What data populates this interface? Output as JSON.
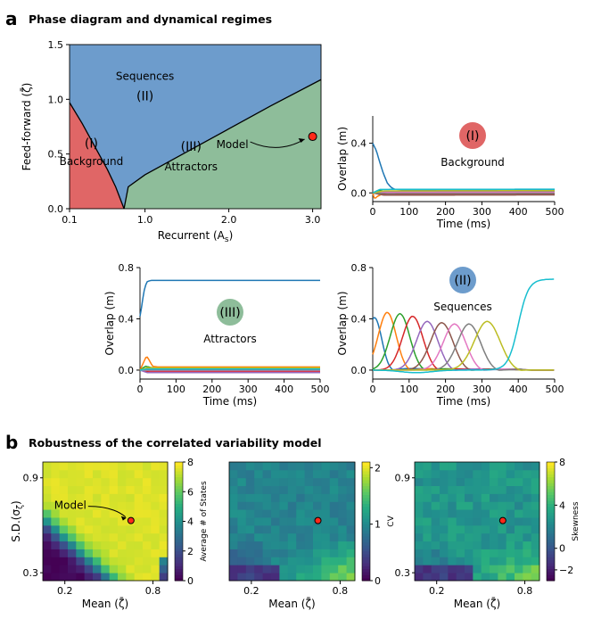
{
  "panel_a": {
    "letter": "a",
    "title": "Phase diagram and dynamical regimes"
  },
  "panel_b": {
    "letter": "b",
    "title": "Robustness of the correlated variability model"
  },
  "colors": {
    "background_region": "#e06666",
    "sequences_region": "#6d9ccc",
    "attractors_region": "#8ebd9a",
    "model_marker": "#ff2a1a"
  },
  "chart_data": [
    {
      "id": "phase",
      "type": "area",
      "xlabel": "Recurrent (A",
      "xlabel_sub": "s",
      "xlabel_close": ")",
      "ylabel": "Feed-forward (ζ̄)",
      "xlim": [
        0.1,
        3.1
      ],
      "ylim": [
        0.0,
        1.5
      ],
      "xticks": [
        {
          "v": 0.1,
          "t": "0.1"
        },
        {
          "v": 1.0,
          "t": "1.0"
        },
        {
          "v": 2.0,
          "t": "2.0"
        },
        {
          "v": 3.0,
          "t": "3.0"
        }
      ],
      "yticks": [
        {
          "v": 0.0,
          "t": "0.0"
        },
        {
          "v": 0.5,
          "t": "0.5"
        },
        {
          "v": 1.0,
          "t": "1.0"
        },
        {
          "v": 1.5,
          "t": "1.5"
        }
      ],
      "boundary_left": [
        [
          0.1,
          0.97
        ],
        [
          0.25,
          0.78
        ],
        [
          0.4,
          0.57
        ],
        [
          0.55,
          0.36
        ],
        [
          0.65,
          0.2
        ],
        [
          0.7,
          0.1
        ],
        [
          0.75,
          0.0
        ]
      ],
      "boundary_right": [
        [
          0.75,
          0.0
        ],
        [
          0.8,
          0.2
        ],
        [
          1.0,
          0.31
        ],
        [
          1.5,
          0.52
        ],
        [
          2.0,
          0.73
        ],
        [
          2.5,
          0.94
        ],
        [
          3.1,
          1.18
        ]
      ],
      "regions": [
        {
          "key": "sequences",
          "label": "Sequences",
          "numeral": "(II)",
          "x": 1.0,
          "y": 1.18,
          "ny": 0.99
        },
        {
          "key": "background",
          "label": "Background",
          "numeral": "(I)",
          "x": 0.36,
          "y": 0.4,
          "ny": 0.56
        },
        {
          "key": "attractors",
          "label": "Attractors",
          "numeral": "(III)",
          "x": 1.55,
          "y": 0.35,
          "ny": 0.53
        }
      ],
      "model": {
        "label": "Model",
        "x": 3.0,
        "y": 0.66
      }
    },
    {
      "id": "background_ts",
      "type": "line",
      "xlabel": "Time (ms)",
      "ylabel": "Overlap (m)",
      "xlim": [
        0,
        500
      ],
      "ylim": [
        -0.07,
        0.62
      ],
      "xticks": [
        0,
        100,
        200,
        300,
        400,
        500
      ],
      "yticks": [
        {
          "v": 0.0,
          "t": "0.0"
        },
        {
          "v": 0.4,
          "t": "0.4"
        }
      ],
      "badge": {
        "numeral": "(I)",
        "label": "Background",
        "color": "#e06666"
      },
      "series": [
        {
          "color": "#1f77b4",
          "points": [
            [
              0,
              0.4
            ],
            [
              10,
              0.34
            ],
            [
              20,
              0.24
            ],
            [
              30,
              0.15
            ],
            [
              40,
              0.08
            ],
            [
              50,
              0.045
            ],
            [
              60,
              0.03
            ],
            [
              80,
              0.025
            ],
            [
              500,
              0.025
            ]
          ]
        },
        {
          "color": "#ff7f0e",
          "points": [
            [
              0,
              0.0
            ],
            [
              5,
              -0.05
            ],
            [
              12,
              -0.03
            ],
            [
              25,
              -0.01
            ],
            [
              50,
              0.0
            ],
            [
              500,
              0.0
            ]
          ]
        },
        {
          "color": "#2ca02c",
          "points": [
            [
              0,
              0.0
            ],
            [
              15,
              0.02
            ],
            [
              30,
              0.015
            ],
            [
              500,
              0.012
            ]
          ]
        },
        {
          "color": "#d62728",
          "points": [
            [
              0,
              0.0
            ],
            [
              20,
              -0.01
            ],
            [
              500,
              -0.01
            ]
          ]
        },
        {
          "color": "#9467bd",
          "points": [
            [
              0,
              0.0
            ],
            [
              25,
              0.01
            ],
            [
              500,
              0.006
            ]
          ]
        },
        {
          "color": "#8c564b",
          "points": [
            [
              0,
              0.0
            ],
            [
              30,
              -0.018
            ],
            [
              500,
              -0.016
            ]
          ]
        },
        {
          "color": "#e377c2",
          "points": [
            [
              0,
              0.0
            ],
            [
              40,
              0.004
            ],
            [
              500,
              0.003
            ]
          ]
        },
        {
          "color": "#7f7f7f",
          "points": [
            [
              0,
              0.0
            ],
            [
              40,
              -0.005
            ],
            [
              500,
              -0.004
            ]
          ]
        },
        {
          "color": "#bcbd22",
          "points": [
            [
              0,
              0.0
            ],
            [
              30,
              0.016
            ],
            [
              500,
              0.018
            ]
          ]
        },
        {
          "color": "#17becf",
          "points": [
            [
              0,
              0.0
            ],
            [
              20,
              0.028
            ],
            [
              500,
              0.03
            ]
          ]
        }
      ]
    },
    {
      "id": "attractors_ts",
      "type": "line",
      "xlabel": "Time (ms)",
      "ylabel": "Overlap (m)",
      "xlim": [
        0,
        500
      ],
      "ylim": [
        -0.07,
        0.8
      ],
      "xticks": [
        0,
        100,
        200,
        300,
        400,
        500
      ],
      "yticks": [
        {
          "v": 0.0,
          "t": "0.0"
        },
        {
          "v": 0.4,
          "t": "0.4"
        },
        {
          "v": 0.8,
          "t": "0.8"
        }
      ],
      "badge": {
        "numeral": "(III)",
        "label": "Attractors",
        "color": "#8ebd9a"
      },
      "series": [
        {
          "color": "#1f77b4",
          "points": [
            [
              0,
              0.42
            ],
            [
              5,
              0.5
            ],
            [
              10,
              0.6
            ],
            [
              15,
              0.66
            ],
            [
              20,
              0.69
            ],
            [
              30,
              0.7
            ],
            [
              500,
              0.7
            ]
          ]
        },
        {
          "color": "#ff7f0e",
          "points": [
            [
              0,
              0.0
            ],
            [
              10,
              0.06
            ],
            [
              18,
              0.11
            ],
            [
              25,
              0.08
            ],
            [
              35,
              0.03
            ],
            [
              50,
              0.025
            ],
            [
              500,
              0.025
            ]
          ]
        },
        {
          "color": "#2ca02c",
          "points": [
            [
              0,
              0.0
            ],
            [
              15,
              0.03
            ],
            [
              40,
              0.015
            ],
            [
              500,
              0.013
            ]
          ]
        },
        {
          "color": "#d62728",
          "points": [
            [
              0,
              0.0
            ],
            [
              20,
              -0.01
            ],
            [
              500,
              -0.01
            ]
          ]
        },
        {
          "color": "#9467bd",
          "points": [
            [
              0,
              0.0
            ],
            [
              20,
              -0.02
            ],
            [
              500,
              -0.02
            ]
          ]
        },
        {
          "color": "#8c564b",
          "points": [
            [
              0,
              0.0
            ],
            [
              30,
              0.006
            ],
            [
              500,
              0.005
            ]
          ]
        },
        {
          "color": "#e377c2",
          "points": [
            [
              0,
              0.0
            ],
            [
              30,
              -0.004
            ],
            [
              500,
              -0.004
            ]
          ]
        },
        {
          "color": "#7f7f7f",
          "points": [
            [
              0,
              0.0
            ],
            [
              30,
              0.0
            ],
            [
              500,
              0.0
            ]
          ]
        },
        {
          "color": "#bcbd22",
          "points": [
            [
              0,
              0.0
            ],
            [
              20,
              0.018
            ],
            [
              500,
              0.018
            ]
          ]
        },
        {
          "color": "#17becf",
          "points": [
            [
              0,
              0.0
            ],
            [
              20,
              0.008
            ],
            [
              500,
              0.008
            ]
          ]
        }
      ]
    },
    {
      "id": "sequences_ts",
      "type": "line",
      "xlabel": "Time (ms)",
      "ylabel": "Overlap (m)",
      "xlim": [
        0,
        500
      ],
      "ylim": [
        -0.07,
        0.8
      ],
      "xticks": [
        0,
        100,
        200,
        300,
        400,
        500
      ],
      "yticks": [
        {
          "v": 0.0,
          "t": "0.0"
        },
        {
          "v": 0.4,
          "t": "0.4"
        },
        {
          "v": 0.8,
          "t": "0.8"
        }
      ],
      "badge": {
        "numeral": "(II)",
        "label": "Sequences",
        "color": "#6d9ccc"
      },
      "pulses": [
        {
          "color": "#1f77b4",
          "peak": 5,
          "amp": 0.41,
          "width": 28
        },
        {
          "color": "#ff7f0e",
          "peak": 40,
          "amp": 0.45,
          "width": 35
        },
        {
          "color": "#2ca02c",
          "peak": 75,
          "amp": 0.44,
          "width": 38
        },
        {
          "color": "#d62728",
          "peak": 110,
          "amp": 0.42,
          "width": 40
        },
        {
          "color": "#9467bd",
          "peak": 150,
          "amp": 0.38,
          "width": 42
        },
        {
          "color": "#8c564b",
          "peak": 190,
          "amp": 0.37,
          "width": 44
        },
        {
          "color": "#e377c2",
          "peak": 225,
          "amp": 0.36,
          "width": 44
        },
        {
          "color": "#7f7f7f",
          "peak": 265,
          "amp": 0.36,
          "width": 45
        },
        {
          "color": "#bcbd22",
          "peak": 315,
          "amp": 0.38,
          "width": 50
        }
      ],
      "rise": {
        "color": "#17becf",
        "start": 300,
        "mid": 400,
        "end": 440,
        "top": 0.71
      }
    },
    {
      "id": "heat_states",
      "type": "heatmap",
      "xlabel": "Mean (ζ̄)",
      "ylabel": "S.D.(σ",
      "ylabel_sub": "ζ",
      "ylabel_close": ")",
      "xticks": [
        {
          "v": 0.2,
          "t": "0.2"
        },
        {
          "v": 0.8,
          "t": "0.8"
        }
      ],
      "yticks": [
        {
          "v": 0.3,
          "t": "0.3"
        },
        {
          "v": 0.9,
          "t": "0.9"
        }
      ],
      "xlim": [
        0.05,
        0.9
      ],
      "ylim": [
        0.25,
        1.0
      ],
      "colorbar": {
        "label": "Average # of States",
        "min": 0,
        "max": 8,
        "ticks": [
          0,
          2,
          4,
          6,
          8
        ]
      },
      "model": {
        "label": "Model",
        "x": 0.65,
        "y": 0.63
      },
      "grid_n": 15
    },
    {
      "id": "heat_cv",
      "type": "heatmap",
      "xlabel": "Mean (ζ̄)",
      "xticks": [
        {
          "v": 0.2,
          "t": "0.2"
        },
        {
          "v": 0.8,
          "t": "0.8"
        }
      ],
      "xlim": [
        0.05,
        0.9
      ],
      "ylim": [
        0.25,
        1.0
      ],
      "colorbar": {
        "label": "CV",
        "min": 0,
        "max": 2.1,
        "ticks": [
          0,
          1,
          2
        ]
      },
      "model": {
        "x": 0.65,
        "y": 0.63
      },
      "grid_n": 15
    },
    {
      "id": "heat_skew",
      "type": "heatmap",
      "xlabel": "Mean (ζ̄)",
      "xticks": [
        {
          "v": 0.2,
          "t": "0.2"
        },
        {
          "v": 0.8,
          "t": "0.8"
        }
      ],
      "yticks": [
        {
          "v": 0.3,
          "t": "0.3"
        },
        {
          "v": 0.9,
          "t": "0.9"
        }
      ],
      "xlim": [
        0.05,
        0.9
      ],
      "ylim": [
        0.25,
        1.0
      ],
      "colorbar": {
        "label": "Skewness",
        "min": -3,
        "max": 8,
        "ticks": [
          -2,
          0,
          4,
          8
        ]
      },
      "model": {
        "x": 0.65,
        "y": 0.63
      },
      "grid_n": 15
    }
  ]
}
